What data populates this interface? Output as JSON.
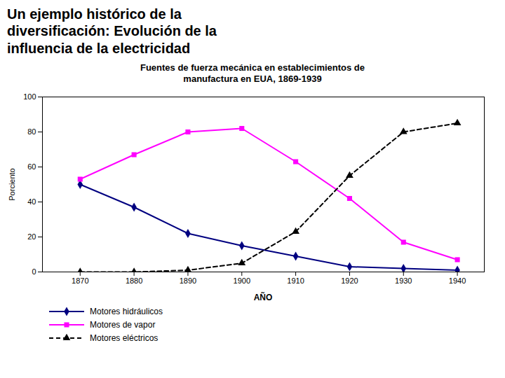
{
  "chart_data": {
    "type": "line",
    "annotations": [
      "Un ejemplo histórico de la\ndiversificación: Evolución de la\ninfluencia de la electricidad"
    ],
    "title": "Fuentes de fuerza mecánica en establecimientos de\nmanufactura en EUA, 1869-1939",
    "xlabel": "AÑO",
    "ylabel": "Porciento",
    "x": [
      1870,
      1880,
      1890,
      1900,
      1910,
      1920,
      1930,
      1940
    ],
    "series": [
      {
        "name": "Motores hidráulicos",
        "color": "#000080",
        "marker": "diamond",
        "line_style": "solid",
        "values": [
          50,
          37,
          22,
          15,
          9,
          3,
          2,
          1
        ]
      },
      {
        "name": "Motores de vapor",
        "color": "#FF00FF",
        "marker": "square",
        "line_style": "solid",
        "values": [
          53,
          67,
          80,
          82,
          63,
          42,
          17,
          7
        ]
      },
      {
        "name": "Motores eléctricos",
        "color": "#000000",
        "marker": "triangle",
        "line_style": "dashed",
        "values": [
          0,
          0,
          1,
          5,
          23,
          55,
          80,
          85
        ]
      }
    ],
    "xlim": [
      1863,
      1945
    ],
    "xticks": [
      1870,
      1880,
      1890,
      1900,
      1910,
      1920,
      1930,
      1940
    ],
    "ylim": [
      0,
      100
    ],
    "yticks": [
      0,
      20,
      40,
      60,
      80,
      100
    ],
    "grid": false,
    "legend": "bottom"
  }
}
